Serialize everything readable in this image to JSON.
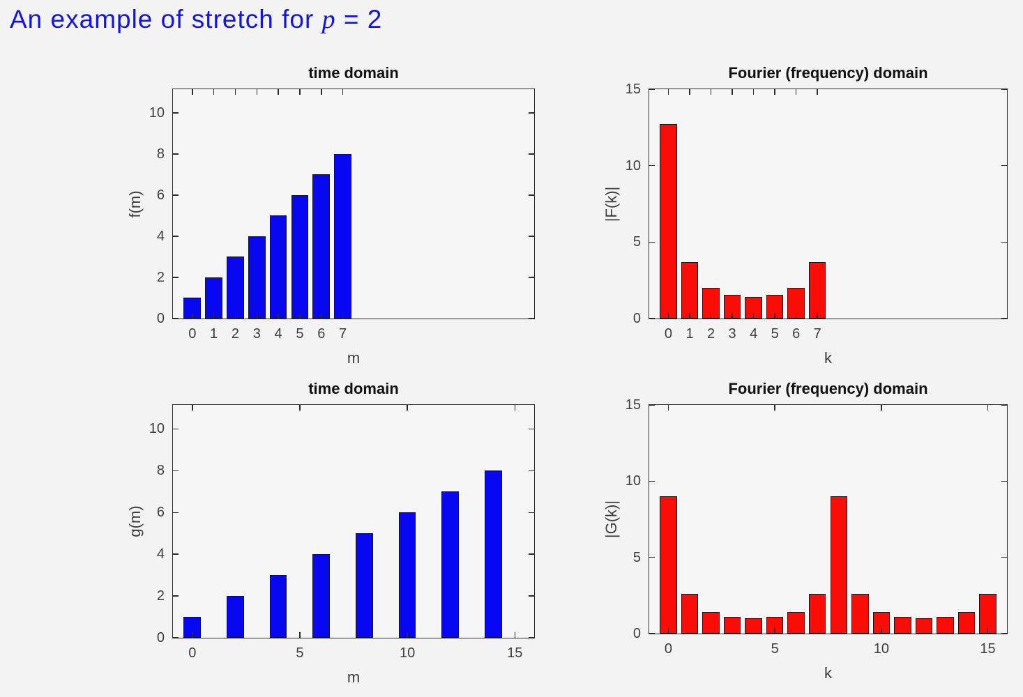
{
  "page_title": {
    "prefix": "An example of stretch for ",
    "variable": "p",
    "suffix": " = 2"
  },
  "colors": {
    "title": "#1414dd",
    "bar_blue": "#0707f2",
    "bar_red": "#f90d06",
    "bar_edge": "#15151d",
    "axis": "#2b2b2b",
    "tick_label": "#3c3c3c",
    "background": "#f3f3f4",
    "axes_background": "#f6f6f7"
  },
  "chart_data": [
    {
      "type": "bar",
      "title": "time domain",
      "xlabel": "m",
      "ylabel": "f(m)",
      "x": [
        0,
        1,
        2,
        3,
        4,
        5,
        6,
        7
      ],
      "values": [
        1,
        2,
        3,
        4,
        5,
        6,
        7,
        8
      ],
      "bar_width": 0.8,
      "bar_color": "#0707f2",
      "xlim": [
        -0.9,
        15.9
      ],
      "ylim": [
        0,
        11.15
      ],
      "xticks": [
        0,
        1,
        2,
        3,
        4,
        5,
        6,
        7
      ],
      "yticks": [
        0,
        2,
        4,
        6,
        8,
        10
      ],
      "grid": false,
      "legend": null
    },
    {
      "type": "bar",
      "title": "Fourier (frequency) domain",
      "xlabel": "k",
      "ylabel": "|F(k)|",
      "x": [
        0,
        1,
        2,
        3,
        4,
        5,
        6,
        7
      ],
      "values": [
        12.73,
        3.7,
        2.0,
        1.53,
        1.41,
        1.53,
        2.0,
        3.7
      ],
      "bar_width": 0.8,
      "bar_color": "#f90d06",
      "xlim": [
        -0.9,
        15.9
      ],
      "ylim": [
        0,
        15
      ],
      "xticks": [
        0,
        1,
        2,
        3,
        4,
        5,
        6,
        7
      ],
      "yticks": [
        0,
        5,
        10,
        15
      ],
      "grid": false,
      "legend": null
    },
    {
      "type": "bar",
      "title": "time domain",
      "xlabel": "m",
      "ylabel": "g(m)",
      "x": [
        0,
        2,
        4,
        6,
        8,
        10,
        12,
        14
      ],
      "values": [
        1,
        2,
        3,
        4,
        5,
        6,
        7,
        8
      ],
      "bar_width": 0.8,
      "bar_color": "#0707f2",
      "xlim": [
        -0.9,
        15.9
      ],
      "ylim": [
        0,
        11.15
      ],
      "xticks": [
        0,
        5,
        10,
        15
      ],
      "yticks": [
        0,
        2,
        4,
        6,
        8,
        10
      ],
      "grid": false,
      "legend": null
    },
    {
      "type": "bar",
      "title": "Fourier (frequency) domain",
      "xlabel": "k",
      "ylabel": "|G(k)|",
      "x": [
        0,
        1,
        2,
        3,
        4,
        5,
        6,
        7,
        8,
        9,
        10,
        11,
        12,
        13,
        14,
        15
      ],
      "values": [
        9.0,
        2.61,
        1.41,
        1.08,
        1.0,
        1.08,
        1.41,
        2.61,
        9.0,
        2.61,
        1.41,
        1.08,
        1.0,
        1.08,
        1.41,
        2.61
      ],
      "bar_width": 0.8,
      "bar_color": "#f90d06",
      "xlim": [
        -0.9,
        15.9
      ],
      "ylim": [
        0,
        15
      ],
      "xticks": [
        0,
        5,
        10,
        15
      ],
      "yticks": [
        0,
        5,
        10,
        15
      ],
      "grid": false,
      "legend": null
    }
  ]
}
